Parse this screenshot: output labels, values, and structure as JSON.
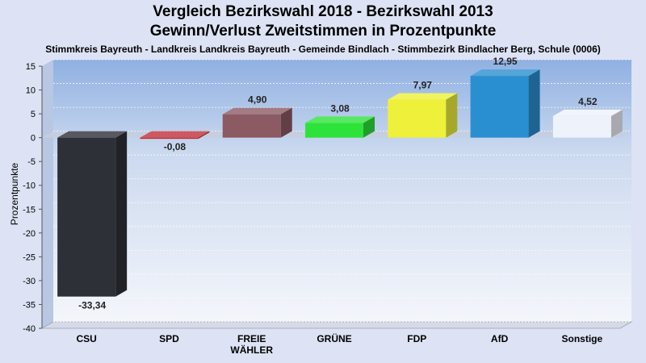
{
  "chart_data": {
    "type": "bar",
    "title": "Vergleich Bezirkswahl 2018 - Bezirkswahl 2013",
    "subtitle": "Gewinn/Verlust Zweitstimmen in Prozentpunkte",
    "subsubtitle": "Stimmkreis Bayreuth - Landkreis Landkreis Bayreuth - Gemeinde Bindlach - Stimmbezirk Bindlacher Berg, Schule (0006)",
    "xlabel": "",
    "ylabel": "Prozentpunkte",
    "ylim": [
      -40,
      15
    ],
    "yticks": [
      15,
      10,
      5,
      0,
      -5,
      -10,
      -15,
      -20,
      -25,
      -30,
      -35,
      -40
    ],
    "categories": [
      "CSU",
      "SPD",
      "FREIE\nWÄHLER",
      "GRÜNE",
      "FDP",
      "AfD",
      "Sonstige"
    ],
    "values": [
      -33.34,
      -0.08,
      4.9,
      3.08,
      7.97,
      12.95,
      4.52
    ],
    "value_labels": [
      "-33,34",
      "-0,08",
      "4,90",
      "3,08",
      "7,97",
      "12,95",
      "4,52"
    ],
    "colors": [
      "#2e3038",
      "#c0303a",
      "#8c5a63",
      "#2de33a",
      "#eef03a",
      "#2a8fd0",
      "#eef2fa"
    ],
    "grid": true,
    "legend": "none"
  }
}
